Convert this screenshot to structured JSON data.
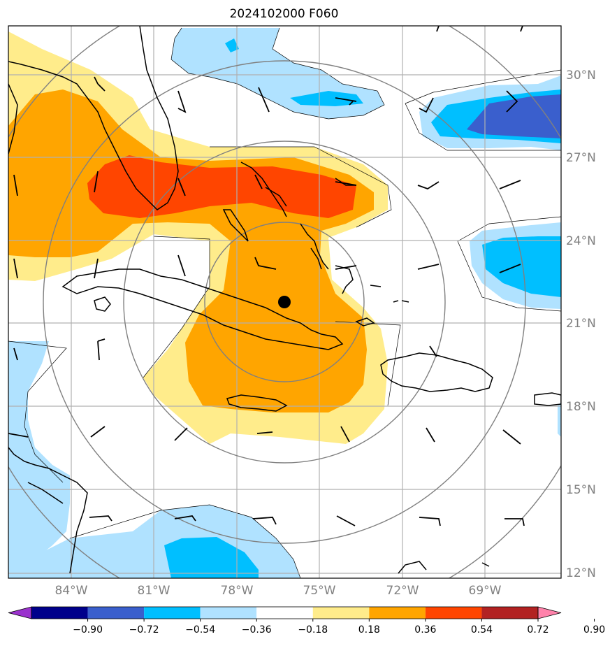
{
  "title": "2024102000 F060",
  "lat_labels": [
    "30°N",
    "27°N",
    "24°N",
    "21°N",
    "18°N",
    "15°N",
    "12°N"
  ],
  "lon_labels": [
    "84°W",
    "81°W",
    "78°W",
    "75°W",
    "72°W",
    "69°W"
  ],
  "colorbar": {
    "labels": [
      "−0.90",
      "−0.72",
      "−0.54",
      "−0.36",
      "−0.18",
      "0.18",
      "0.36",
      "0.54",
      "0.72",
      "0.90"
    ],
    "colors": [
      "#9a32cd",
      "#00008b",
      "#3a5fcd",
      "#00bfff",
      "#b0e2ff",
      "#ffffff",
      "#ffec8b",
      "#ffa500",
      "#ff4500",
      "#b22222",
      "#ff82ab"
    ]
  },
  "center_marker": {
    "lat": 21.8,
    "lon": -76.3
  },
  "shading_colors": {
    "light_yellow": "#ffec8b",
    "orange": "#ffa500",
    "red_orange": "#ff4500",
    "light_blue": "#b0e2ff",
    "deep_sky_blue": "#00bfff",
    "royal_blue": "#3a5fcd"
  }
}
